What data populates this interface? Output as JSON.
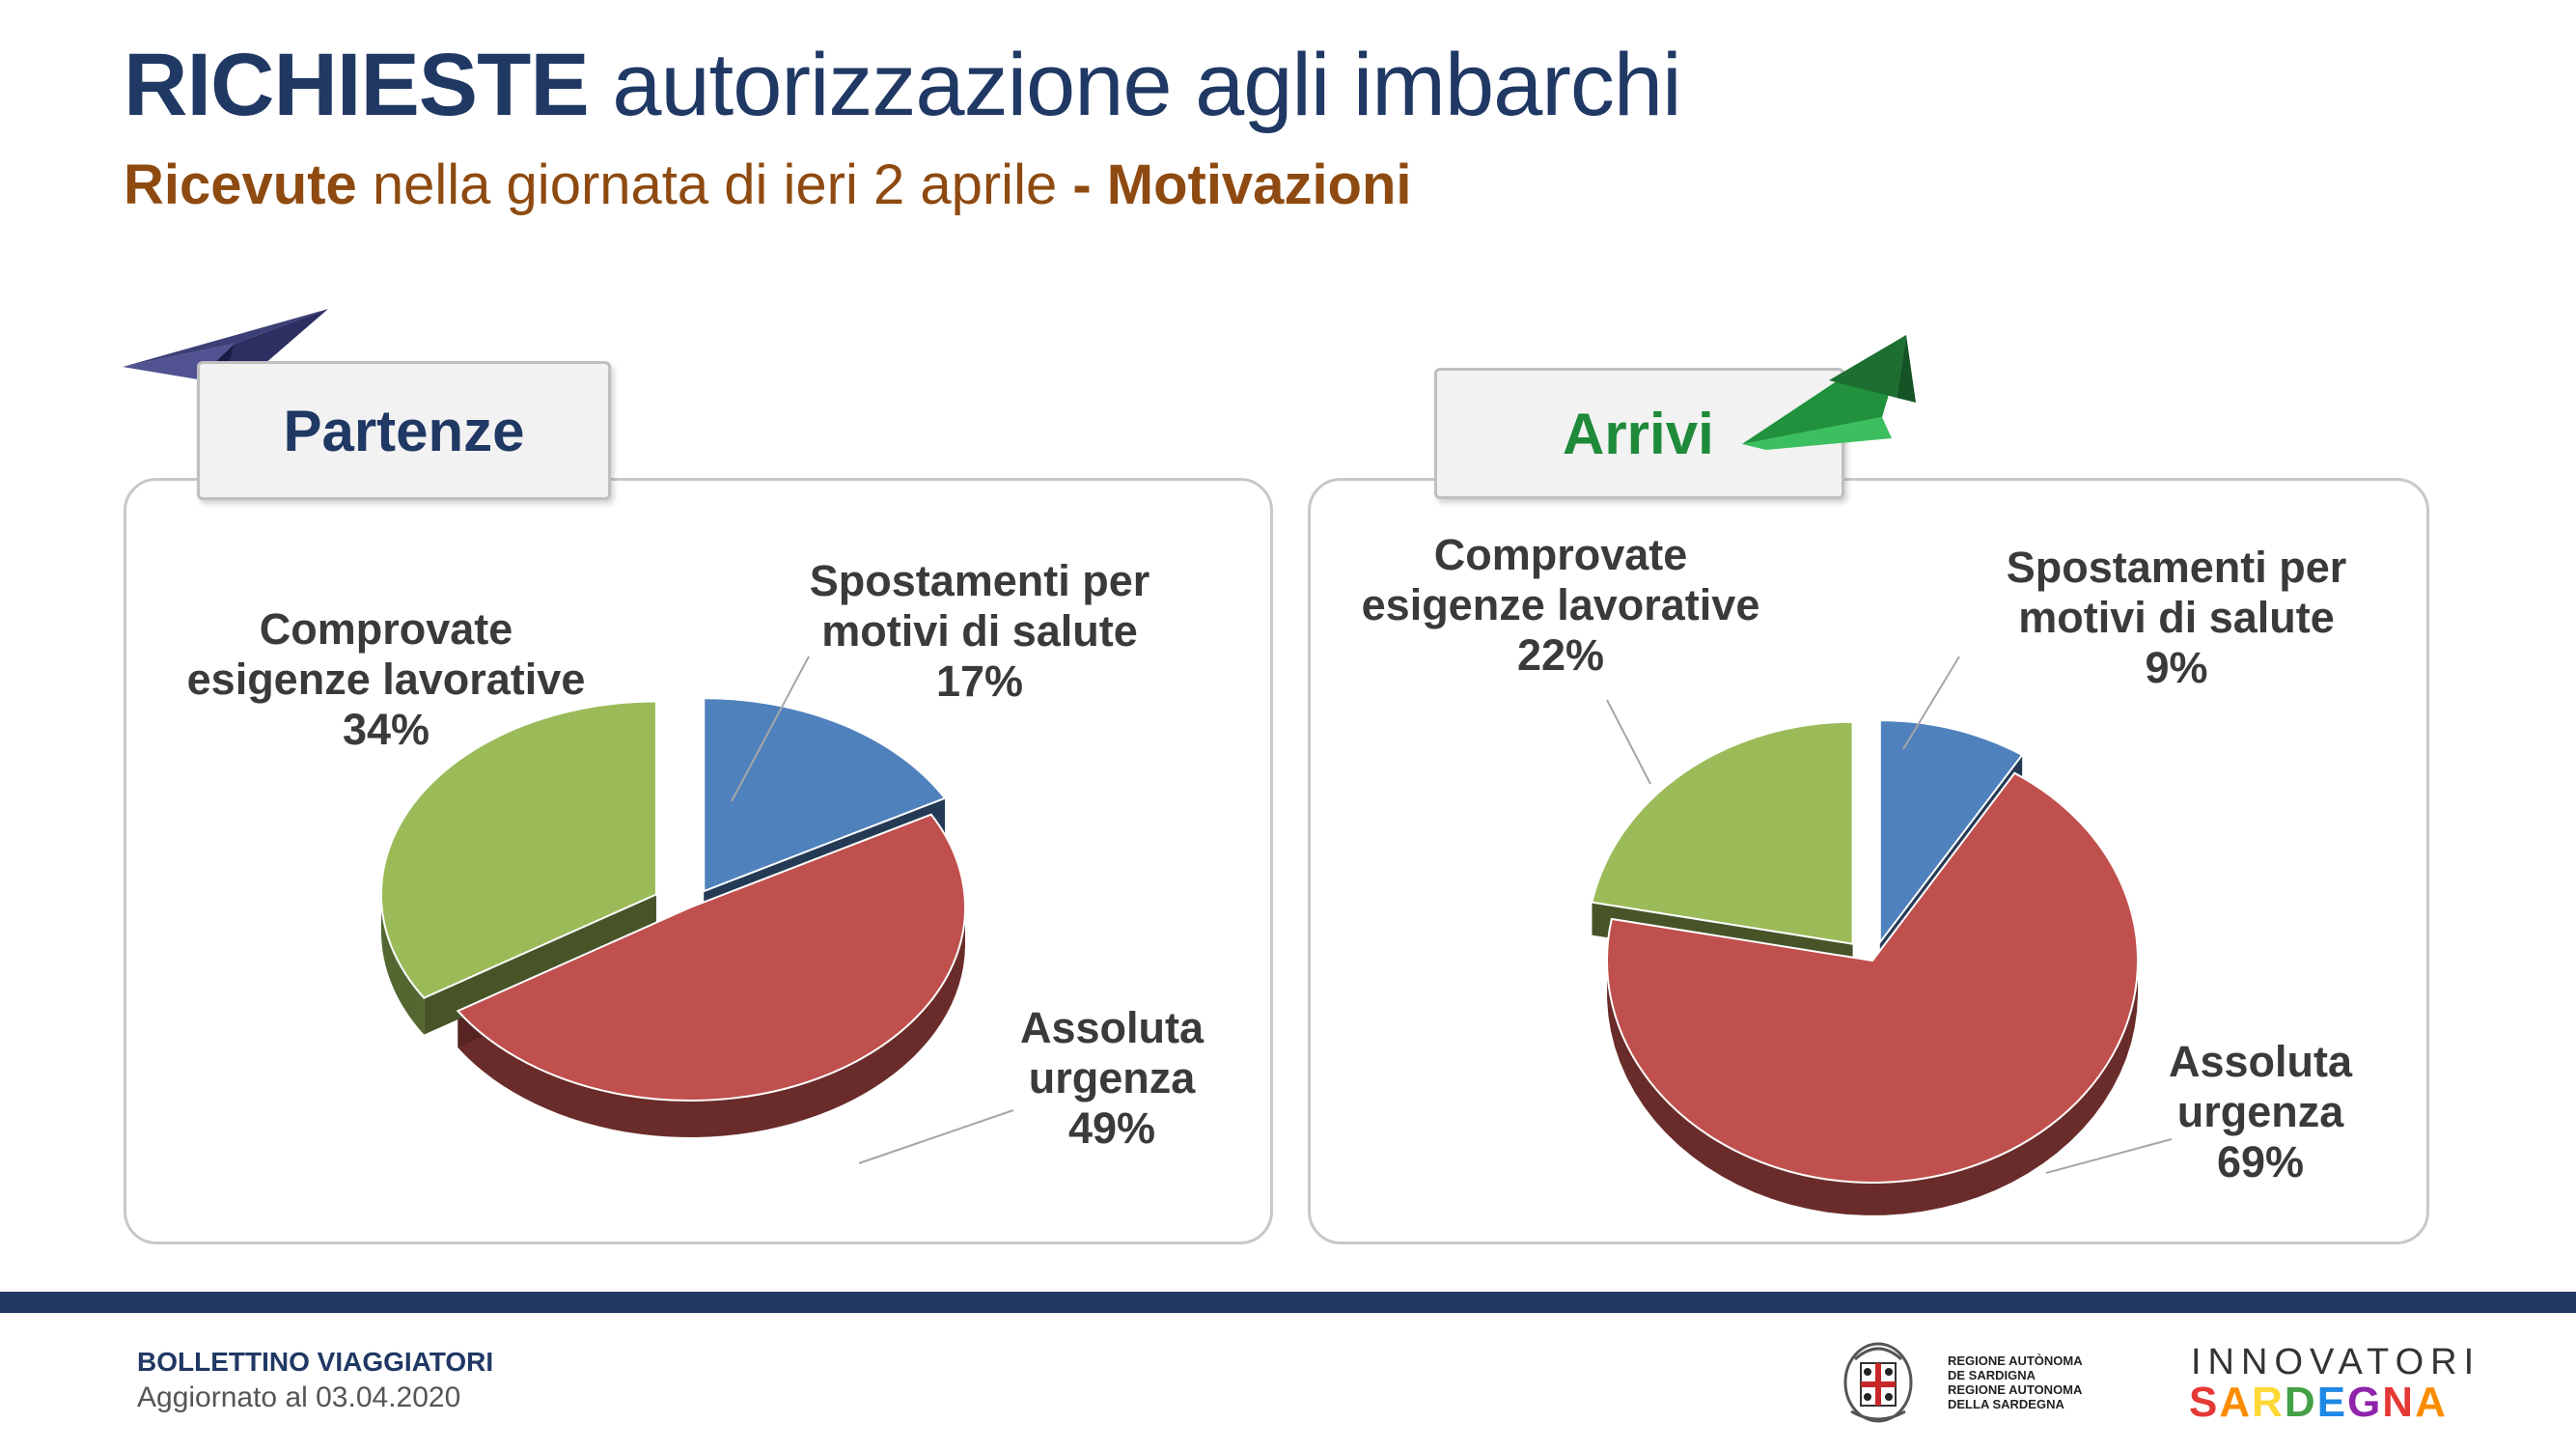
{
  "header": {
    "title_bold": "RICHIESTE",
    "title_rest": " autorizzazione agli imbarchi",
    "subtitle_bold1": "Ricevute",
    "subtitle_mid": " nella giornata di ieri 2 aprile ",
    "subtitle_bold2": "- Motivazioni"
  },
  "panels": {
    "left_tab": "Partenze",
    "right_tab": "Arrivi"
  },
  "colors": {
    "blue_slice": "#4f81bd",
    "red_slice": "#c0504d",
    "green_slice": "#9bbb59",
    "title_navy": "#203864",
    "subtitle_brown": "#8e4a10",
    "arrivi_green": "#1f8a3a"
  },
  "chart_data": [
    {
      "type": "pie",
      "title": "Partenze",
      "slices": [
        {
          "label_lines": [
            "Spostamenti per",
            "motivi di salute",
            "17%"
          ],
          "value": 17,
          "color": "#4f81bd"
        },
        {
          "label_lines": [
            "Assoluta",
            "urgenza",
            "49%"
          ],
          "value": 49,
          "color": "#c0504d"
        },
        {
          "label_lines": [
            "Comprovate",
            "esigenze lavorative",
            "34%"
          ],
          "value": 34,
          "color": "#9bbb59"
        }
      ]
    },
    {
      "type": "pie",
      "title": "Arrivi",
      "slices": [
        {
          "label_lines": [
            "Spostamenti per",
            "motivi di salute",
            "9%"
          ],
          "value": 9,
          "color": "#4f81bd"
        },
        {
          "label_lines": [
            "Assoluta",
            "urgenza",
            "69%"
          ],
          "value": 69,
          "color": "#c0504d"
        },
        {
          "label_lines": [
            "Comprovate",
            "esigenze lavorative",
            "22%"
          ],
          "value": 22,
          "color": "#9bbb59"
        }
      ]
    }
  ],
  "footer": {
    "bulletin": "BOLLETTINO VIAGGIATORI",
    "updated": "Aggiornato al 03.04.2020",
    "region_line1": "REGIONE AUTÒNOMA",
    "region_line2": "DE SARDIGNA",
    "region_line3": "REGIONE AUTONOMA",
    "region_line4": "DELLA SARDEGNA",
    "innov_word1": "INNOVATORI",
    "innov_word2": "SARDEGNA"
  }
}
